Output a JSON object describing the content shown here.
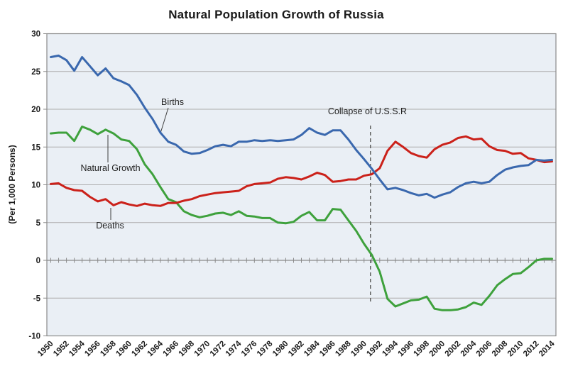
{
  "chart_data": {
    "type": "line",
    "title": "Natural Population Growth of Russia",
    "ylabel": "(Per 1,000 Persons)",
    "xlabel": "",
    "ylim": [
      -10,
      30
    ],
    "y_tick_step": 5,
    "x_tick_step": 2,
    "grid": true,
    "legend": "none (series labeled inline with callouts)",
    "years": [
      1950,
      1951,
      1952,
      1953,
      1954,
      1955,
      1956,
      1957,
      1958,
      1959,
      1960,
      1961,
      1962,
      1963,
      1964,
      1965,
      1966,
      1967,
      1968,
      1969,
      1970,
      1971,
      1972,
      1973,
      1974,
      1975,
      1976,
      1977,
      1978,
      1979,
      1980,
      1981,
      1982,
      1983,
      1984,
      1985,
      1986,
      1987,
      1988,
      1989,
      1990,
      1991,
      1992,
      1993,
      1994,
      1995,
      1996,
      1997,
      1998,
      1999,
      2000,
      2001,
      2002,
      2003,
      2004,
      2005,
      2006,
      2007,
      2008,
      2009,
      2010,
      2011,
      2012,
      2013,
      2014
    ],
    "series": [
      {
        "name": "Births",
        "color": "#3A68AE",
        "values": [
          26.9,
          27.1,
          26.5,
          25.1,
          26.9,
          25.7,
          24.5,
          25.4,
          24.1,
          23.7,
          23.2,
          21.9,
          20.2,
          18.7,
          16.9,
          15.7,
          15.3,
          14.4,
          14.1,
          14.2,
          14.6,
          15.1,
          15.3,
          15.1,
          15.7,
          15.7,
          15.9,
          15.8,
          15.9,
          15.8,
          15.9,
          16.0,
          16.6,
          17.5,
          16.9,
          16.6,
          17.2,
          17.2,
          16.0,
          14.6,
          13.4,
          12.1,
          10.7,
          9.4,
          9.6,
          9.3,
          8.9,
          8.6,
          8.8,
          8.3,
          8.7,
          9.0,
          9.7,
          10.2,
          10.4,
          10.2,
          10.4,
          11.3,
          12.0,
          12.3,
          12.5,
          12.6,
          13.3,
          13.2,
          13.3
        ]
      },
      {
        "name": "Deaths",
        "color": "#CB211A",
        "values": [
          10.1,
          10.2,
          9.6,
          9.3,
          9.2,
          8.4,
          7.8,
          8.1,
          7.3,
          7.7,
          7.4,
          7.2,
          7.5,
          7.3,
          7.2,
          7.6,
          7.6,
          7.9,
          8.1,
          8.5,
          8.7,
          8.9,
          9.0,
          9.1,
          9.2,
          9.8,
          10.1,
          10.2,
          10.3,
          10.8,
          11.0,
          10.9,
          10.7,
          11.1,
          11.6,
          11.3,
          10.4,
          10.5,
          10.7,
          10.7,
          11.2,
          11.4,
          12.2,
          14.5,
          15.7,
          15.0,
          14.2,
          13.8,
          13.6,
          14.7,
          15.3,
          15.6,
          16.2,
          16.4,
          16.0,
          16.1,
          15.1,
          14.6,
          14.5,
          14.1,
          14.2,
          13.5,
          13.3,
          13.0,
          13.1
        ]
      },
      {
        "name": "Natural Growth",
        "color": "#3EA13C",
        "values": [
          16.8,
          16.9,
          16.9,
          15.8,
          17.7,
          17.3,
          16.7,
          17.3,
          16.8,
          16.0,
          15.8,
          14.7,
          12.7,
          11.4,
          9.7,
          8.1,
          7.7,
          6.5,
          6.0,
          5.7,
          5.9,
          6.2,
          6.3,
          6.0,
          6.5,
          5.9,
          5.8,
          5.6,
          5.6,
          5.0,
          4.9,
          5.1,
          5.9,
          6.4,
          5.3,
          5.3,
          6.8,
          6.7,
          5.3,
          3.9,
          2.2,
          0.7,
          -1.5,
          -5.1,
          -6.1,
          -5.7,
          -5.3,
          -5.2,
          -4.8,
          -6.4,
          -6.6,
          -6.6,
          -6.5,
          -6.2,
          -5.6,
          -5.9,
          -4.7,
          -3.3,
          -2.5,
          -1.8,
          -1.7,
          -0.9,
          0.0,
          0.2,
          0.2
        ]
      }
    ],
    "annotation": {
      "label": "Collapse of U.S.S.R",
      "year": 1991
    },
    "colors": {
      "plot_bg": "#EAEFF5",
      "gridline": "#ACACAC",
      "axis": "#8A8A8A",
      "annotation_line": "#595959",
      "callout_line": "#3F3F3F",
      "text": "#1A1A1A"
    }
  }
}
